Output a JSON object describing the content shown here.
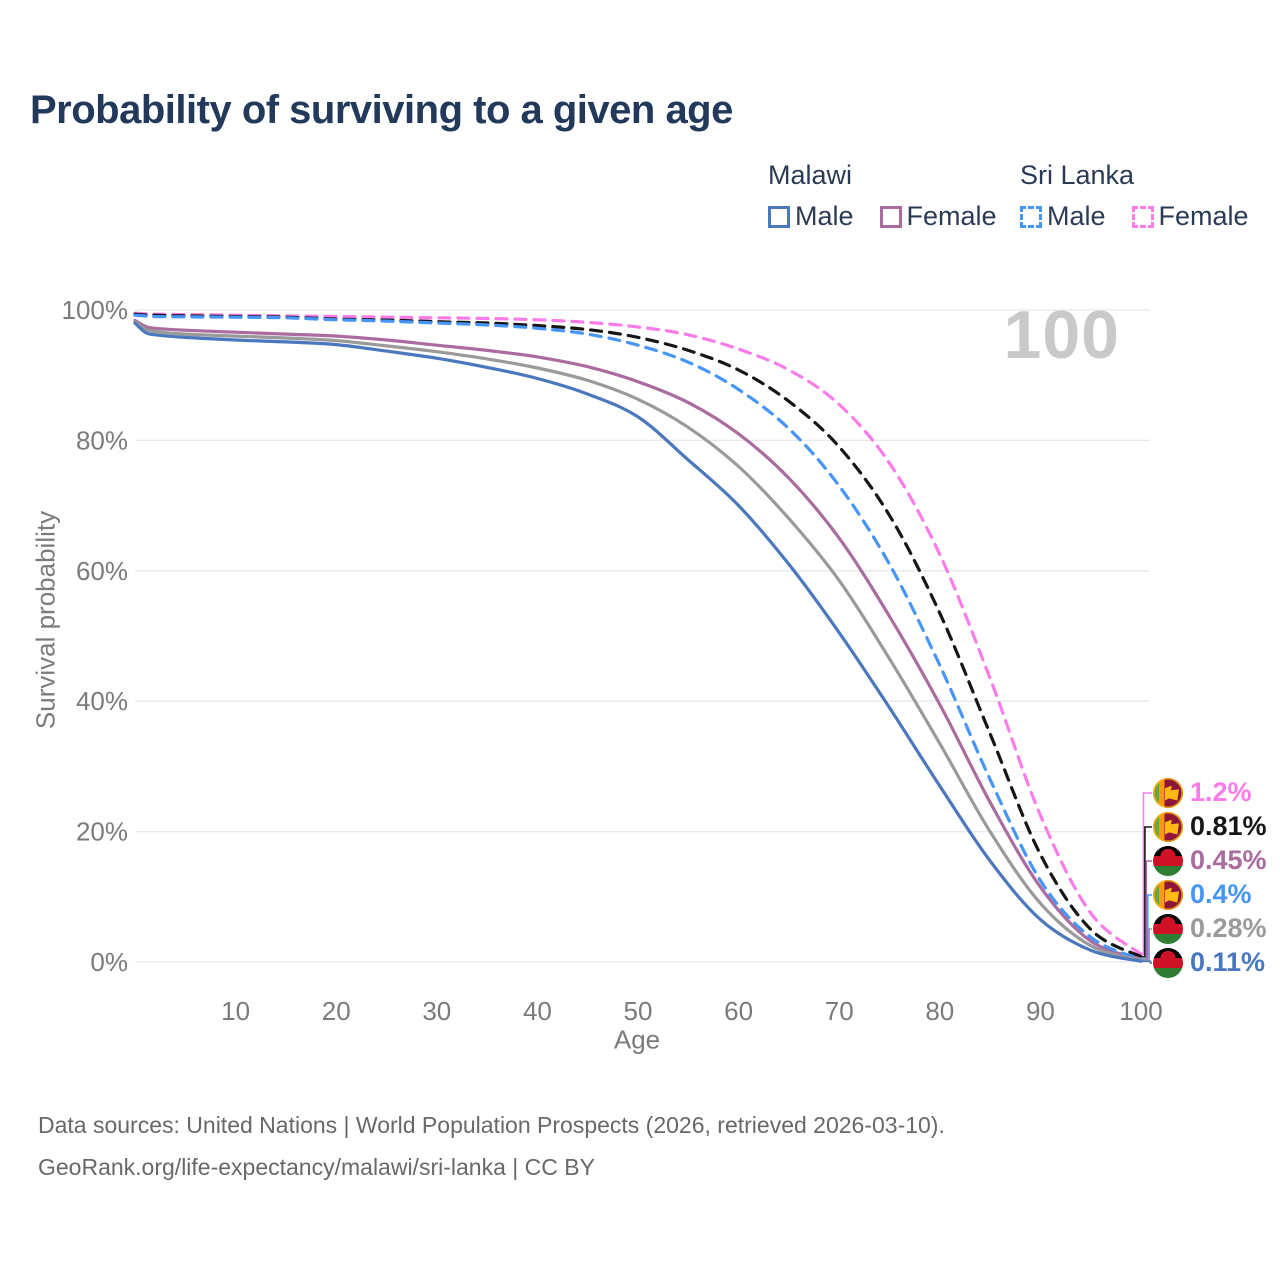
{
  "header": {
    "title": "Probability of surviving to a given age"
  },
  "legend": {
    "groups": [
      {
        "label": "Malawi",
        "style": "solid",
        "items": [
          {
            "label": "Male",
            "color": "#4a77bd"
          },
          {
            "label": "Female",
            "color": "#aa6b9f"
          }
        ]
      },
      {
        "label": "Sri Lanka",
        "style": "dashed",
        "items": [
          {
            "label": "Male",
            "color": "#4695f7"
          },
          {
            "label": "Female",
            "color": "#fb7ce8"
          }
        ]
      }
    ]
  },
  "watermark": "100",
  "chart_data": {
    "type": "line",
    "title": "Probability of surviving to a given age",
    "xlabel": "Age",
    "ylabel": "Survival probability",
    "xlim": [
      0,
      100
    ],
    "ylim": [
      0,
      100
    ],
    "grid": "horizontal",
    "x_ticks": [
      {
        "v": 10,
        "label": "10"
      },
      {
        "v": 20,
        "label": "20"
      },
      {
        "v": 30,
        "label": "30"
      },
      {
        "v": 40,
        "label": "40"
      },
      {
        "v": 50,
        "label": "50"
      },
      {
        "v": 60,
        "label": "60"
      },
      {
        "v": 70,
        "label": "70"
      },
      {
        "v": 80,
        "label": "80"
      },
      {
        "v": 90,
        "label": "90"
      },
      {
        "v": 100,
        "label": "100"
      }
    ],
    "y_ticks": [
      {
        "v": 0,
        "label": "0%"
      },
      {
        "v": 20,
        "label": "20%"
      },
      {
        "v": 40,
        "label": "40%"
      },
      {
        "v": 60,
        "label": "60%"
      },
      {
        "v": 80,
        "label": "80%"
      },
      {
        "v": 100,
        "label": "100%"
      }
    ],
    "x": [
      0,
      1,
      2,
      5,
      10,
      15,
      20,
      25,
      30,
      35,
      40,
      45,
      50,
      55,
      60,
      65,
      70,
      75,
      80,
      85,
      90,
      95,
      100
    ],
    "series": [
      {
        "name": "Sri Lanka Female",
        "country": "sri-lanka",
        "sex": "female",
        "color": "#fb7ce8",
        "dashed": true,
        "end_label": "1.2%",
        "label_color": "#fb7ce8",
        "values": [
          99.5,
          99.4,
          99.35,
          99.3,
          99.2,
          99.1,
          99.0,
          98.9,
          98.8,
          98.7,
          98.5,
          98.1,
          97.4,
          96.2,
          94.0,
          90.8,
          85.5,
          76.5,
          62.5,
          43.5,
          22.5,
          7.5,
          1.2
        ]
      },
      {
        "name": "Sri Lanka",
        "country": "sri-lanka",
        "sex": "both",
        "color": "#161616",
        "dashed": true,
        "end_label": "0.81%",
        "label_color": "#161616",
        "values": [
          99.35,
          99.25,
          99.2,
          99.1,
          99.0,
          98.9,
          98.6,
          98.45,
          98.2,
          98.0,
          97.6,
          97.0,
          95.8,
          93.8,
          90.8,
          86.0,
          79.0,
          68.5,
          53.5,
          35.0,
          16.5,
          5.0,
          0.81
        ]
      },
      {
        "name": "Malawi Female",
        "country": "malawi",
        "sex": "female",
        "color": "#aa6b9f",
        "dashed": false,
        "end_label": "0.45%",
        "label_color": "#aa6b9f",
        "values": [
          98.4,
          97.5,
          97.2,
          96.9,
          96.6,
          96.3,
          96.0,
          95.4,
          94.6,
          93.8,
          92.8,
          91.3,
          89.0,
          85.8,
          81.0,
          74.2,
          65.0,
          53.0,
          39.5,
          24.5,
          11.5,
          3.2,
          0.45
        ]
      },
      {
        "name": "Sri Lanka Male",
        "country": "sri-lanka",
        "sex": "male",
        "color": "#4695f7",
        "dashed": true,
        "end_label": "0.4%",
        "label_color": "#4695f7",
        "values": [
          99.2,
          99.1,
          99.0,
          98.95,
          98.9,
          98.8,
          98.5,
          98.3,
          98.0,
          97.7,
          97.2,
          96.3,
          94.6,
          92.0,
          87.8,
          81.8,
          73.0,
          61.0,
          45.5,
          28.0,
          12.5,
          3.8,
          0.4
        ]
      },
      {
        "name": "Malawi",
        "country": "malawi",
        "sex": "both",
        "color": "#9a9a9a",
        "dashed": false,
        "end_label": "0.28%",
        "label_color": "#9a9a9a",
        "values": [
          98.2,
          97.1,
          96.7,
          96.3,
          96.0,
          95.7,
          95.3,
          94.5,
          93.6,
          92.5,
          91.1,
          89.2,
          86.3,
          82.0,
          76.0,
          68.0,
          58.5,
          46.5,
          33.5,
          20.0,
          9.0,
          2.5,
          0.28
        ]
      },
      {
        "name": "Malawi Male",
        "country": "malawi",
        "sex": "male",
        "color": "#4a77bd",
        "dashed": false,
        "end_label": "0.11%",
        "label_color": "#4a77bd",
        "values": [
          98.0,
          96.6,
          96.2,
          95.8,
          95.4,
          95.1,
          94.7,
          93.7,
          92.6,
          91.2,
          89.5,
          87.1,
          83.6,
          77.0,
          70.0,
          61.0,
          50.5,
          39.0,
          27.0,
          15.5,
          6.5,
          1.8,
          0.11
        ]
      }
    ]
  },
  "footer": {
    "line1": "Data sources: United Nations | World Population Prospects (2026, retrieved 2026-03-10).",
    "line2": "GeoRank.org/life-expectancy/malawi/sri-lanka | CC BY"
  }
}
